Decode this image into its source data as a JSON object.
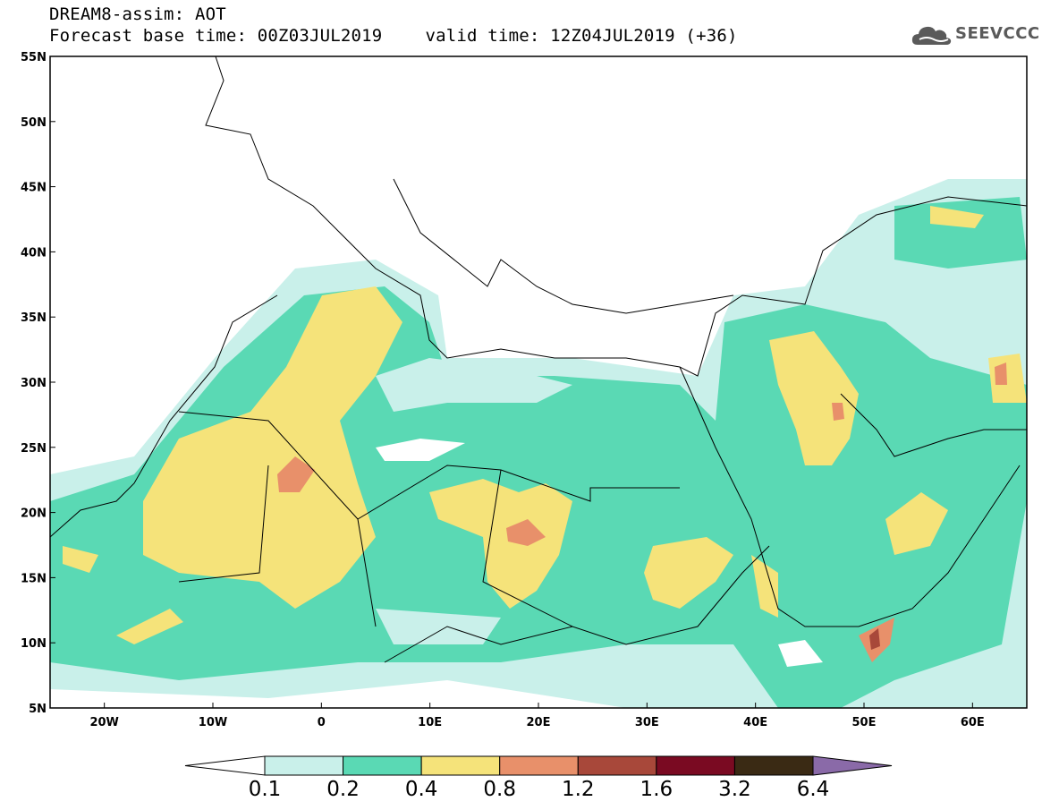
{
  "title": {
    "line1": "DREAM8-assim: AOT",
    "base_time": "Forecast base time: 00Z03JUL2019",
    "valid_time": "valid time: 12Z04JUL2019 (+36)"
  },
  "logo": {
    "text": "SEEVCCC",
    "icon": "cloud-icon"
  },
  "map": {
    "lon_range": [
      -25,
      65
    ],
    "lat_range": [
      5,
      55
    ],
    "lat_ticks": [
      {
        "value": 55,
        "label": "55N"
      },
      {
        "value": 50,
        "label": "50N"
      },
      {
        "value": 45,
        "label": "45N"
      },
      {
        "value": 40,
        "label": "40N"
      },
      {
        "value": 35,
        "label": "35N"
      },
      {
        "value": 30,
        "label": "30N"
      },
      {
        "value": 25,
        "label": "25N"
      },
      {
        "value": 20,
        "label": "20N"
      },
      {
        "value": 15,
        "label": "15N"
      },
      {
        "value": 10,
        "label": "10N"
      },
      {
        "value": 5,
        "label": "5N"
      }
    ],
    "lon_ticks": [
      {
        "value": -20,
        "label": "20W"
      },
      {
        "value": -10,
        "label": "10W"
      },
      {
        "value": 0,
        "label": "0"
      },
      {
        "value": 10,
        "label": "10E"
      },
      {
        "value": 20,
        "label": "20E"
      },
      {
        "value": 30,
        "label": "30E"
      },
      {
        "value": 40,
        "label": "40E"
      },
      {
        "value": 50,
        "label": "50E"
      },
      {
        "value": 60,
        "label": "60E"
      }
    ]
  },
  "colorbar": {
    "levels": [
      "0.1",
      "0.2",
      "0.4",
      "0.8",
      "1.2",
      "1.6",
      "3.2",
      "6.4"
    ],
    "colors": [
      "#ffffff",
      "#c9f0ea",
      "#5ad9b4",
      "#f5e37a",
      "#e8906a",
      "#a8483a",
      "#7a0a22",
      "#3a2a14",
      "#8a6aa8"
    ]
  }
}
